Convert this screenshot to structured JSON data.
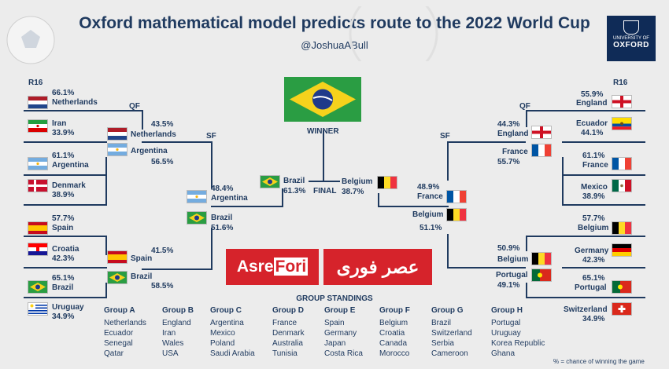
{
  "header": {
    "title": "Oxford mathematical model predicts route to the 2022 World Cup",
    "subtitle": "@JoshuaABull"
  },
  "logo": {
    "line1": "UNIVERSITY OF",
    "line2": "OXFORD"
  },
  "rounds": {
    "r16_left": "R16",
    "r16_right": "R16",
    "qf_left": "QF",
    "qf_right": "QF",
    "sf_left": "SF",
    "sf_right": "SF",
    "final": "FINAL",
    "winner": "WINNER"
  },
  "left_r16": [
    {
      "team": "Netherlands",
      "pct": "66.1%",
      "flag": "netherlands-flag"
    },
    {
      "team": "Iran",
      "pct": "33.9%",
      "flag": "iran-flag"
    },
    {
      "team": "Argentina",
      "pct": "61.1%",
      "flag": "argentina-flag"
    },
    {
      "team": "Denmark",
      "pct": "38.9%",
      "flag": "denmark-flag"
    },
    {
      "team": "Spain",
      "pct": "57.7%",
      "flag": "spain-flag"
    },
    {
      "team": "Croatia",
      "pct": "42.3%",
      "flag": "croatia-flag"
    },
    {
      "team": "Brazil",
      "pct": "65.1%",
      "flag": "brazil-flag"
    },
    {
      "team": "Uruguay",
      "pct": "34.9%",
      "flag": "uruguay-flag"
    }
  ],
  "left_qf": [
    {
      "team": "Netherlands",
      "pct": "43.5%"
    },
    {
      "team": "Argentina",
      "pct": "56.5%"
    },
    {
      "team": "Spain",
      "pct": "41.5%"
    },
    {
      "team": "Brazil",
      "pct": "58.5%"
    }
  ],
  "left_sf": [
    {
      "team": "Argentina",
      "pct": "48.4%"
    },
    {
      "team": "Brazil",
      "pct": "51.6%"
    }
  ],
  "final": [
    {
      "team": "Brazil",
      "pct": "61.3%"
    },
    {
      "team": "Belgium",
      "pct": "38.7%"
    }
  ],
  "right_sf": [
    {
      "team": "France",
      "pct": "48.9%"
    },
    {
      "team": "Belgium",
      "pct": "51.1%"
    }
  ],
  "right_qf": [
    {
      "team": "England",
      "pct": "44.3%"
    },
    {
      "team": "France",
      "pct": "55.7%"
    },
    {
      "team": "Belgium",
      "pct": "50.9%"
    },
    {
      "team": "Portugal",
      "pct": "49.1%"
    }
  ],
  "right_r16": [
    {
      "team": "England",
      "pct": "55.9%",
      "flag": "england-flag"
    },
    {
      "team": "Ecuador",
      "pct": "44.1%",
      "flag": "ecuador-flag"
    },
    {
      "team": "France",
      "pct": "61.1%",
      "flag": "france-flag"
    },
    {
      "team": "Mexico",
      "pct": "38.9%",
      "flag": "mexico-flag"
    },
    {
      "team": "Belgium",
      "pct": "57.7%",
      "flag": "belgium-flag"
    },
    {
      "team": "Germany",
      "pct": "42.3%",
      "flag": "germany-flag"
    },
    {
      "team": "Portugal",
      "pct": "65.1%",
      "flag": "portugal-flag"
    },
    {
      "team": "Switzerland",
      "pct": "34.9%",
      "flag": "switzerland-flag"
    }
  ],
  "watermark": {
    "latin_a": "Asre",
    "latin_b": "Fori",
    "persian": "عصر فوری"
  },
  "groups": {
    "title": "GROUP STANDINGS",
    "list": [
      {
        "name": "Group A",
        "teams": [
          "Netherlands",
          "Ecuador",
          "Senegal",
          "Qatar"
        ]
      },
      {
        "name": "Group B",
        "teams": [
          "England",
          "Iran",
          "Wales",
          "USA"
        ]
      },
      {
        "name": "Group C",
        "teams": [
          "Argentina",
          "Mexico",
          "Poland",
          "Saudi Arabia"
        ]
      },
      {
        "name": "Group D",
        "teams": [
          "France",
          "Denmark",
          "Australia",
          "Tunisia"
        ]
      },
      {
        "name": "Group E",
        "teams": [
          "Spain",
          "Germany",
          "Japan",
          "Costa Rica"
        ]
      },
      {
        "name": "Group F",
        "teams": [
          "Belgium",
          "Croatia",
          "Canada",
          "Morocco"
        ]
      },
      {
        "name": "Group G",
        "teams": [
          "Brazil",
          "Switzerland",
          "Serbia",
          "Cameroon"
        ]
      },
      {
        "name": "Group H",
        "teams": [
          "Portugal",
          "Uruguay",
          "Korea Republic",
          "Ghana"
        ]
      }
    ]
  },
  "footnote": "% = chance of winning the game",
  "colors": {
    "navy": "#1f3a5f",
    "background": "#ececec",
    "watermark_red": "#d6232b"
  }
}
